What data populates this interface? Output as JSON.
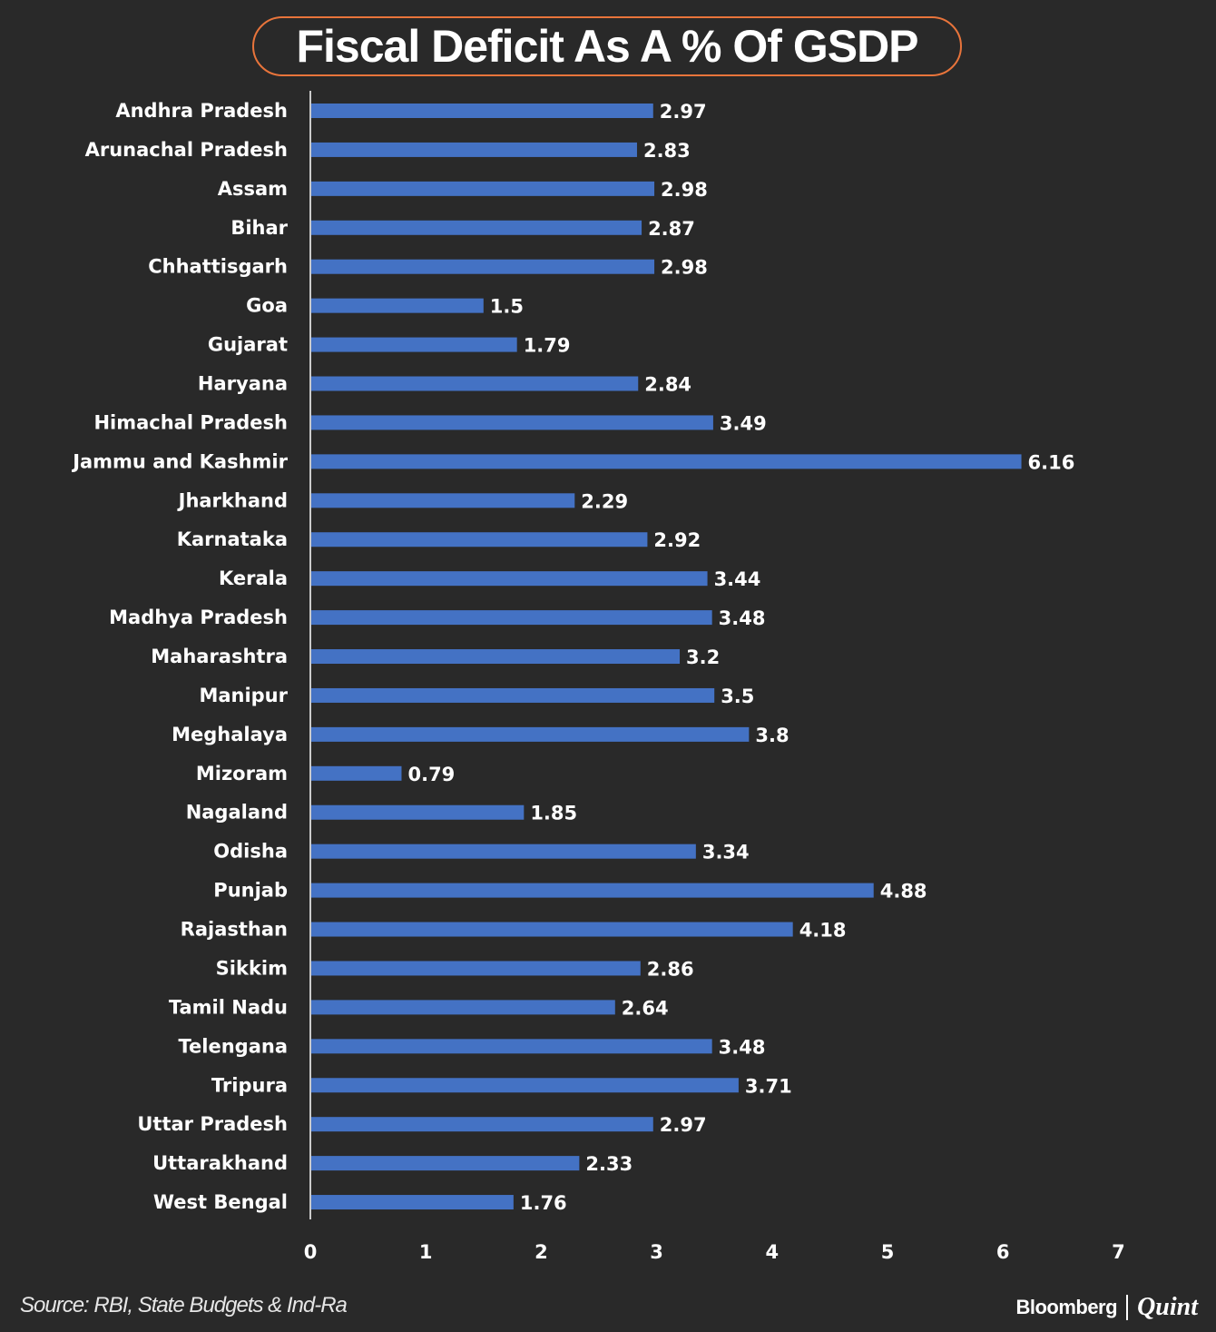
{
  "title": "Fiscal Deficit As A % Of GSDP",
  "source": "Source: RBI, State Budgets & Ind-Ra",
  "brand": {
    "primary": "Bloomberg",
    "secondary": "Quint"
  },
  "colors": {
    "background": "#292929",
    "bar": "#4472c4",
    "accent": "#e8743b",
    "text": "#ffffff"
  },
  "chart_data": {
    "type": "bar",
    "orientation": "horizontal",
    "title": "Fiscal Deficit As A % Of GSDP",
    "xlabel": "",
    "ylabel": "",
    "xlim": [
      0,
      7
    ],
    "xticks": [
      0,
      1,
      2,
      3,
      4,
      5,
      6,
      7
    ],
    "grid": false,
    "legend": "none",
    "categories": [
      "Andhra Pradesh",
      "Arunachal Pradesh",
      "Assam",
      "Bihar",
      "Chhattisgarh",
      "Goa",
      "Gujarat",
      "Haryana",
      "Himachal Pradesh",
      "Jammu and Kashmir",
      "Jharkhand",
      "Karnataka",
      "Kerala",
      "Madhya Pradesh",
      "Maharashtra",
      "Manipur",
      "Meghalaya",
      "Mizoram",
      "Nagaland",
      "Odisha",
      "Punjab",
      "Rajasthan",
      "Sikkim",
      "Tamil Nadu",
      "Telengana",
      "Tripura",
      "Uttar Pradesh",
      "Uttarakhand",
      "West Bengal"
    ],
    "values": [
      2.97,
      2.83,
      2.98,
      2.87,
      2.98,
      1.5,
      1.79,
      2.84,
      3.49,
      6.16,
      2.29,
      2.92,
      3.44,
      3.48,
      3.2,
      3.5,
      3.8,
      0.79,
      1.85,
      3.34,
      4.88,
      4.18,
      2.86,
      2.64,
      3.48,
      3.71,
      2.97,
      2.33,
      1.76
    ],
    "data_labels": [
      "2.97",
      "2.83",
      "2.98",
      "2.87",
      "2.98",
      "1.5",
      "1.79",
      "2.84",
      "3.49",
      "6.16",
      "2.29",
      "2.92",
      "3.44",
      "3.48",
      "3.2",
      "3.5",
      "3.8",
      "0.79",
      "1.85",
      "3.34",
      "4.88",
      "4.18",
      "2.86",
      "2.64",
      "3.48",
      "3.71",
      "2.97",
      "2.33",
      "1.76"
    ]
  }
}
